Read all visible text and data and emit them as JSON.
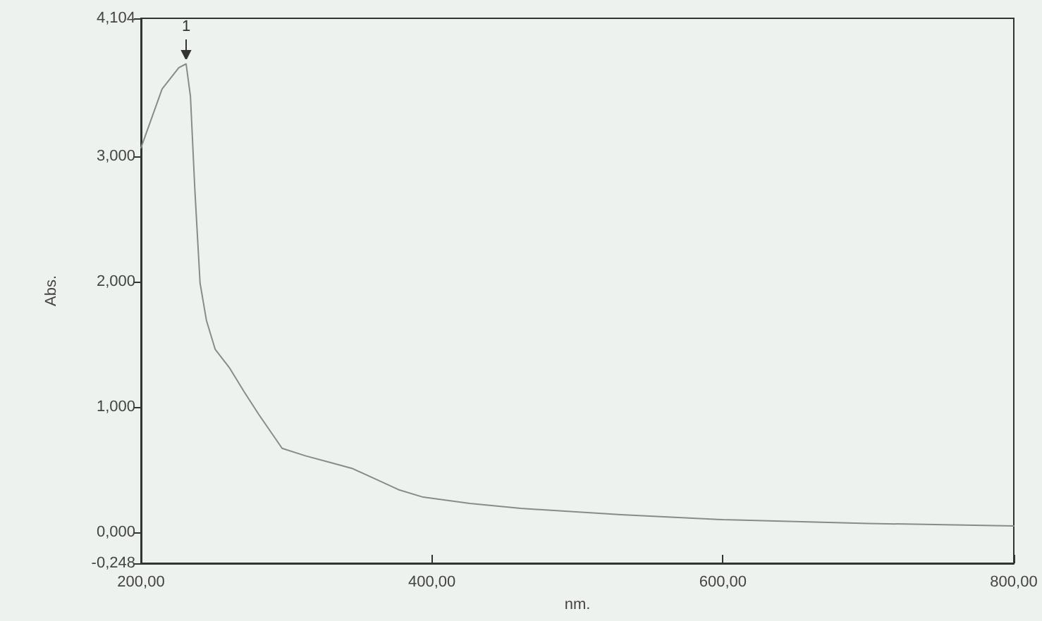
{
  "chart_data": {
    "type": "line",
    "xlabel": "nm.",
    "ylabel": "Abs.",
    "x": [
      200,
      214.5,
      226,
      231,
      234,
      237,
      240.6,
      245,
      251,
      261,
      271,
      281,
      297,
      313,
      329,
      345,
      362,
      377,
      394,
      426,
      461,
      530,
      600,
      700,
      800
    ],
    "series": [
      {
        "color": "#8a8a8a",
        "values": [
          3.07,
          3.54,
          3.71,
          3.74,
          3.48,
          2.74,
          1.99,
          1.69,
          1.46,
          1.31,
          1.12,
          0.94,
          0.67,
          0.61,
          0.56,
          0.51,
          0.42,
          0.34,
          0.28,
          0.23,
          0.19,
          0.14,
          0.1,
          0.07,
          0.05
        ]
      }
    ],
    "xlim": [
      200,
      800
    ],
    "xticks": [
      {
        "value": 200,
        "label": "200,00"
      },
      {
        "value": 400,
        "label": "400,00"
      },
      {
        "value": 600,
        "label": "600,00"
      },
      {
        "value": 800,
        "label": "800,00"
      }
    ],
    "ylim": [
      -0.248,
      4.104
    ],
    "yticks": [
      {
        "value": -0.248,
        "label": "-0,248"
      },
      {
        "value": 0,
        "label": "0,000"
      },
      {
        "value": 1,
        "label": "1,000"
      },
      {
        "value": 2,
        "label": "2,000"
      },
      {
        "value": 3,
        "label": "3,000"
      },
      {
        "value": 4.104,
        "label": "4,104"
      }
    ],
    "annotations": [
      {
        "text": "1",
        "x": 231,
        "y": 3.74
      }
    ],
    "grid": false,
    "marker": "none",
    "line_style": "solid"
  }
}
